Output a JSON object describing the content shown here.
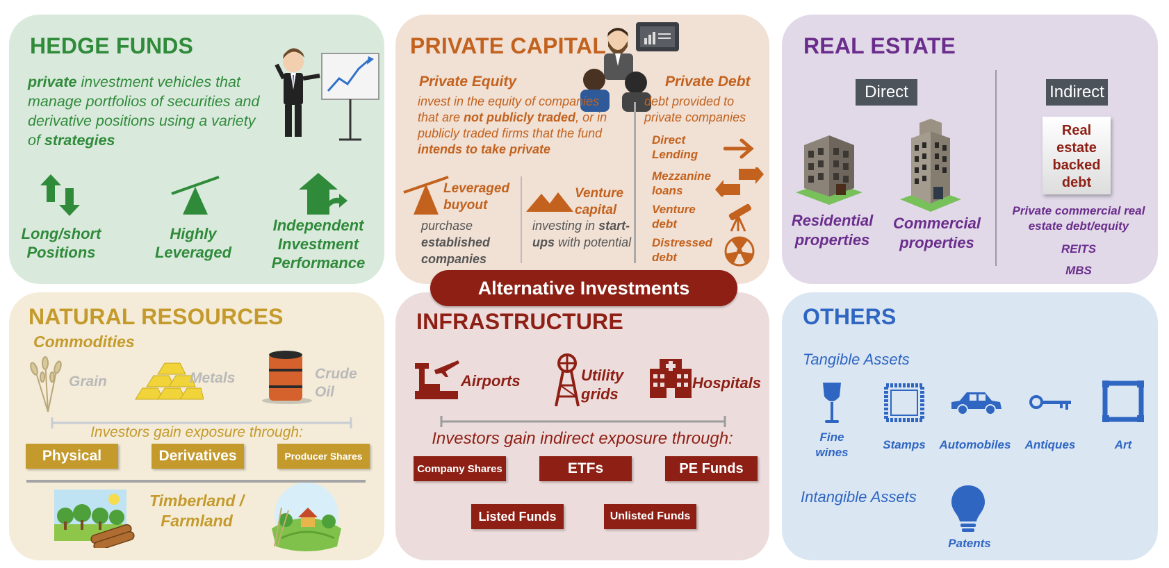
{
  "banner": "Alternative Investments",
  "hedge": {
    "title": "HEDGE FUNDS",
    "desc": {
      "w1": "private",
      "t1": " investment vehicles that manage portfolios of securities and derivative positions using a variety of ",
      "w2": "strategies"
    },
    "features": [
      {
        "label": "Long/short Positions",
        "icon": "up-down-arrows-icon"
      },
      {
        "label": "Highly Leveraged",
        "icon": "seesaw-icon"
      },
      {
        "label": "Independent Investment Performance",
        "icon": "house-arrow-icon"
      }
    ]
  },
  "private": {
    "title": "PRIVATE CAPITAL",
    "equity": {
      "heading": "Private Equity",
      "p1": "invest in the equity of companies that are ",
      "b1": "not publicly traded",
      "p2": ", or in publicly traded firms that the fund ",
      "b2": "intends to take private"
    },
    "debt": {
      "heading": "Private Debt",
      "desc": "debt provided to private companies",
      "items": [
        "Direct Lending",
        "Mezzanine loans",
        "Venture debt",
        "Distressed debt"
      ]
    },
    "lbo": {
      "heading": "Leveraged buyout",
      "p1": "purchase ",
      "b1": "established companies"
    },
    "vc": {
      "heading": "Venture capital",
      "p1": "investing in ",
      "b1": "start-ups",
      "p2": " with potential"
    }
  },
  "realestate": {
    "title": "REAL ESTATE",
    "direct": "Direct",
    "indirect": "Indirect",
    "residential": "Residential properties",
    "commercial": "Commercial properties",
    "debt_box": "Real estate backed debt",
    "commercial_debt": "Private commercial real estate debt/equity",
    "reits": "REITS",
    "mbs": "MBS"
  },
  "natural": {
    "title": "NATURAL RESOURCES",
    "subtitle": "Commodities",
    "items": [
      "Grain",
      "Metals",
      "Crude Oil"
    ],
    "exposure": "Investors gain exposure through:",
    "buttons": [
      "Physical",
      "Derivatives",
      "Producer Shares"
    ],
    "timber": "Timberland / Farmland"
  },
  "infra": {
    "title": "INFRASTRUCTURE",
    "items": [
      "Airports",
      "Utility grids",
      "Hospitals"
    ],
    "exposure": "Investors gain indirect exposure through:",
    "buttons": [
      "Company Shares",
      "ETFs",
      "PE Funds",
      "Listed Funds",
      "Unlisted Funds"
    ]
  },
  "others": {
    "title": "OTHERS",
    "tangible": "Tangible Assets",
    "tangible_items": [
      "Fine wines",
      "Stamps",
      "Automobiles",
      "Antiques",
      "Art"
    ],
    "intangible": "Intangible Assets",
    "intangible_item": "Patents"
  },
  "colors": {
    "hedge": "#2f8a3a",
    "private": "#c2621e",
    "realestate": "#6a2d8c",
    "natural": "#c49a2c",
    "infra": "#8d1f14",
    "others": "#2e66c2"
  }
}
